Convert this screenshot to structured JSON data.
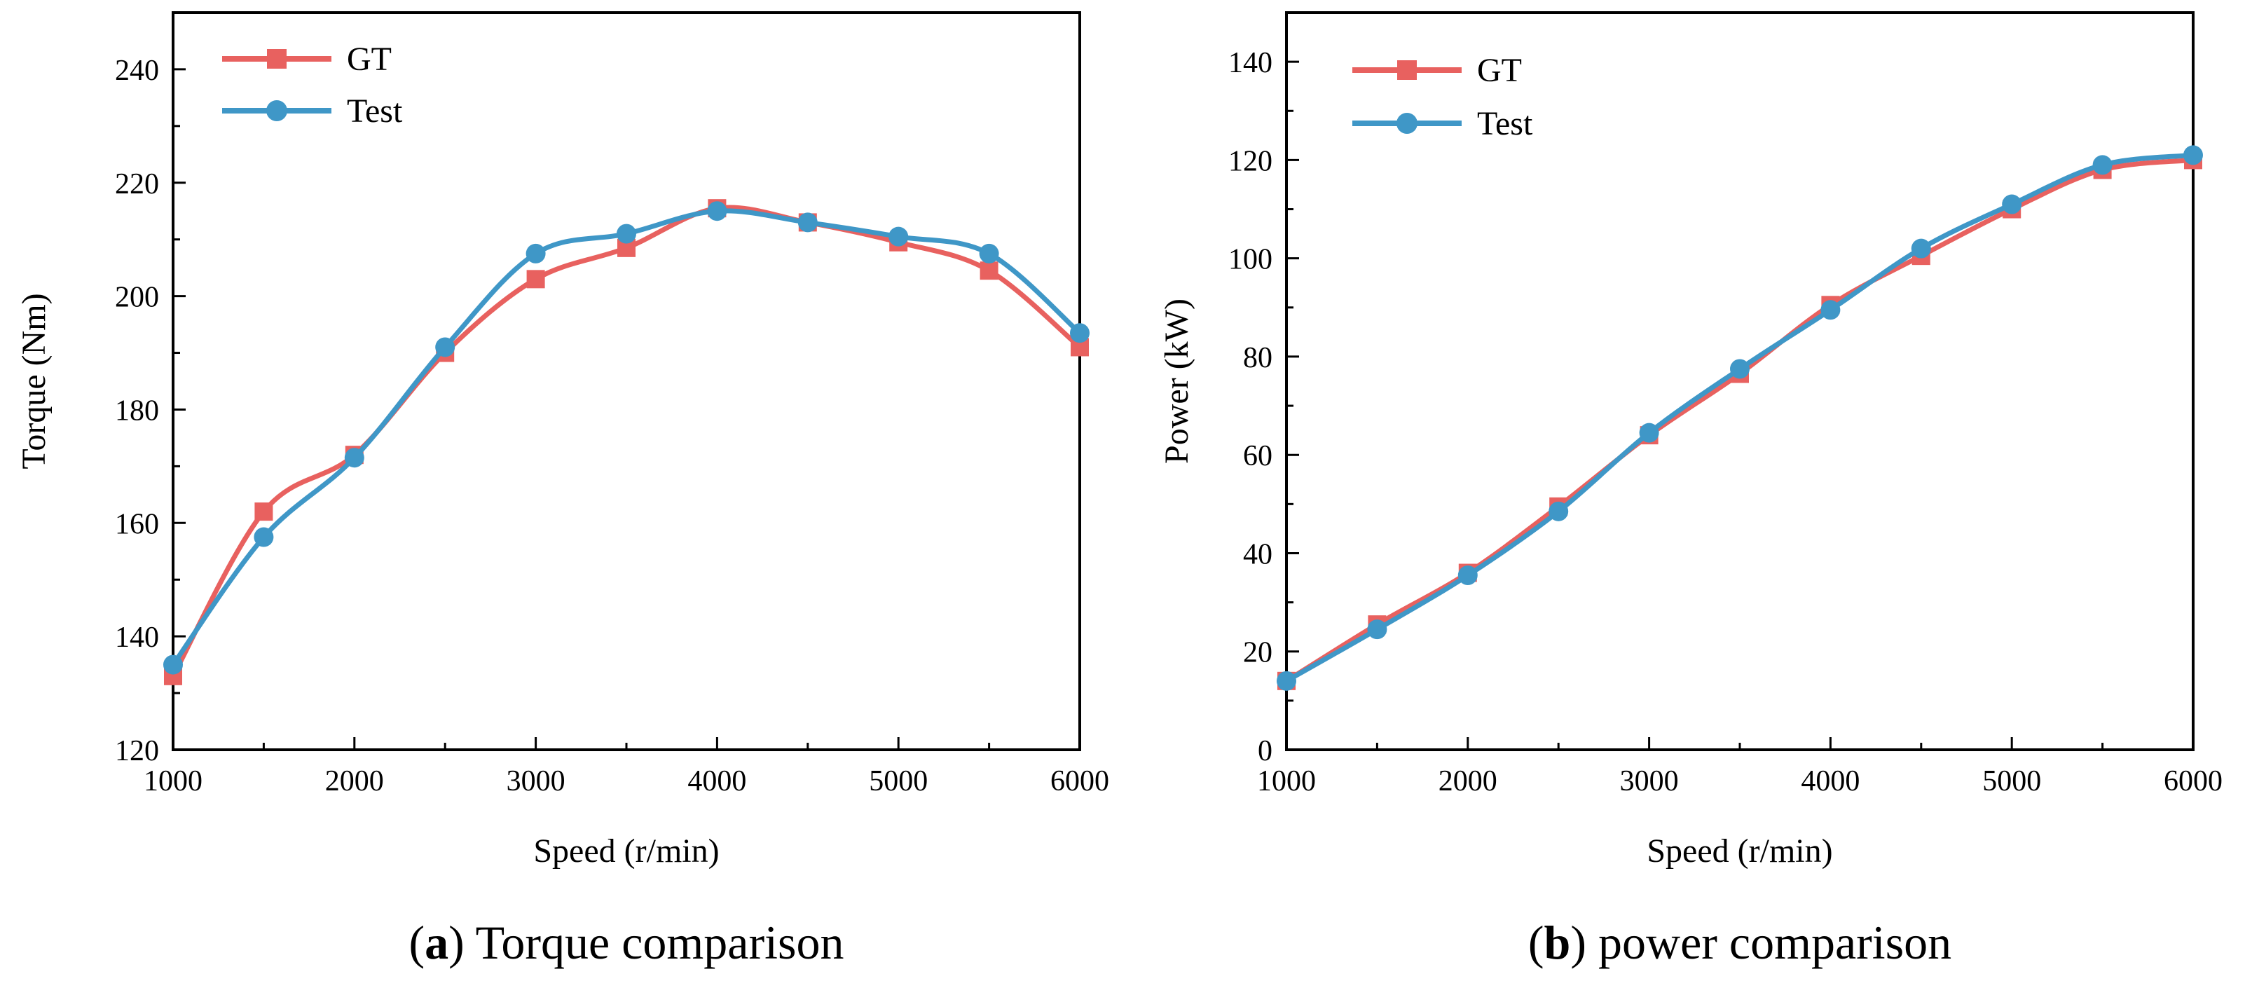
{
  "chart_data": [
    {
      "id": "a",
      "type": "line",
      "title": "",
      "caption": {
        "letter": "a",
        "text": "Torque comparison"
      },
      "xlabel": "Speed (r/min)",
      "ylabel": "Torque (Nm)",
      "xlim": [
        1000,
        6000
      ],
      "ylim": [
        120,
        250
      ],
      "xticks": [
        1000,
        2000,
        3000,
        4000,
        5000,
        6000
      ],
      "yticks": [
        120,
        140,
        160,
        180,
        200,
        220,
        240
      ],
      "x": [
        1000,
        1500,
        2000,
        2500,
        3000,
        3500,
        4000,
        4500,
        5000,
        5500,
        6000
      ],
      "series": [
        {
          "name": "GT",
          "color": "#e8615f",
          "marker": "square",
          "values": [
            133,
            162,
            172,
            190,
            203,
            208.5,
            215.5,
            213,
            209.5,
            204.5,
            191
          ]
        },
        {
          "name": "Test",
          "color": "#3f97c7",
          "marker": "circle",
          "values": [
            135,
            157.5,
            171.5,
            191,
            207.5,
            211,
            215,
            213,
            210.5,
            207.5,
            193.5
          ]
        }
      ],
      "legend": "top-left"
    },
    {
      "id": "b",
      "type": "line",
      "title": "",
      "caption": {
        "letter": "b",
        "text": "power comparison"
      },
      "xlabel": "Speed (r/min)",
      "ylabel": "Power (kW)",
      "xlim": [
        1000,
        6000
      ],
      "ylim": [
        0,
        150
      ],
      "xticks": [
        1000,
        2000,
        3000,
        4000,
        5000,
        6000
      ],
      "yticks": [
        0,
        20,
        40,
        60,
        80,
        100,
        120,
        140
      ],
      "x": [
        1000,
        1500,
        2000,
        2500,
        3000,
        3500,
        4000,
        4500,
        5000,
        5500,
        6000
      ],
      "series": [
        {
          "name": "GT",
          "color": "#e8615f",
          "marker": "square",
          "values": [
            14,
            25.5,
            36,
            49.5,
            64,
            76.5,
            90.5,
            100.5,
            110,
            118,
            120
          ]
        },
        {
          "name": "Test",
          "color": "#3f97c7",
          "marker": "circle",
          "values": [
            14,
            24.5,
            35.5,
            48.5,
            64.5,
            77.5,
            89.5,
            102,
            111,
            119,
            121
          ]
        }
      ],
      "legend": "top-left"
    }
  ]
}
